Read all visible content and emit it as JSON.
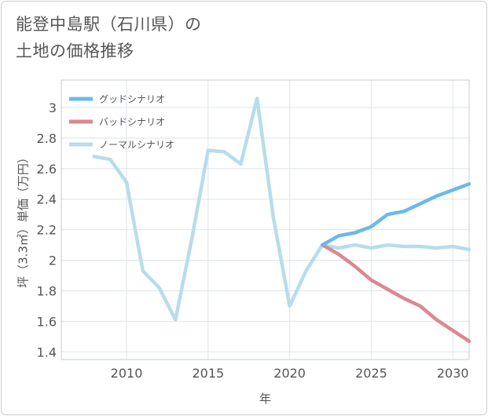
{
  "title": {
    "line1": "能登中島駅（石川県）の",
    "line2": "土地の価格推移"
  },
  "chart_data": {
    "type": "line",
    "xlabel": "年",
    "ylabel": "坪（3.3㎡）単価（万円）",
    "xlim": [
      2006,
      2031
    ],
    "ylim": [
      1.35,
      3.18
    ],
    "x_ticks": [
      2010,
      2015,
      2020,
      2025,
      2030
    ],
    "y_ticks": [
      1.4,
      1.6,
      1.8,
      2,
      2.2,
      2.4,
      2.6,
      2.8,
      3
    ],
    "grid": true,
    "legend_position": "top-left",
    "series": [
      {
        "name": "グッドシナリオ",
        "color": "#6cb8ee",
        "x": [
          2022,
          2023,
          2024,
          2025,
          2026,
          2027,
          2028,
          2029,
          2030,
          2031
        ],
        "y": [
          2.1,
          2.16,
          2.18,
          2.22,
          2.3,
          2.32,
          2.37,
          2.42,
          2.46,
          2.5
        ]
      },
      {
        "name": "バッドシナリオ",
        "color": "#dc8890",
        "x": [
          2022,
          2023,
          2024,
          2025,
          2026,
          2027,
          2028,
          2029,
          2030,
          2031
        ],
        "y": [
          2.1,
          2.04,
          1.96,
          1.87,
          1.81,
          1.75,
          1.7,
          1.61,
          1.54,
          1.47
        ]
      },
      {
        "name": "ノーマルシナリオ",
        "color": "#b8dcec",
        "x": [
          2008,
          2009,
          2010,
          2011,
          2012,
          2013,
          2014,
          2015,
          2016,
          2017,
          2018,
          2019,
          2020,
          2021,
          2022,
          2023,
          2024,
          2025,
          2026,
          2027,
          2028,
          2029,
          2030,
          2031
        ],
        "y": [
          2.68,
          2.66,
          2.51,
          1.93,
          1.82,
          1.61,
          2.14,
          2.72,
          2.71,
          2.63,
          3.06,
          2.28,
          1.7,
          1.93,
          2.1,
          2.08,
          2.1,
          2.08,
          2.1,
          2.09,
          2.09,
          2.08,
          2.09,
          2.07
        ]
      }
    ]
  }
}
